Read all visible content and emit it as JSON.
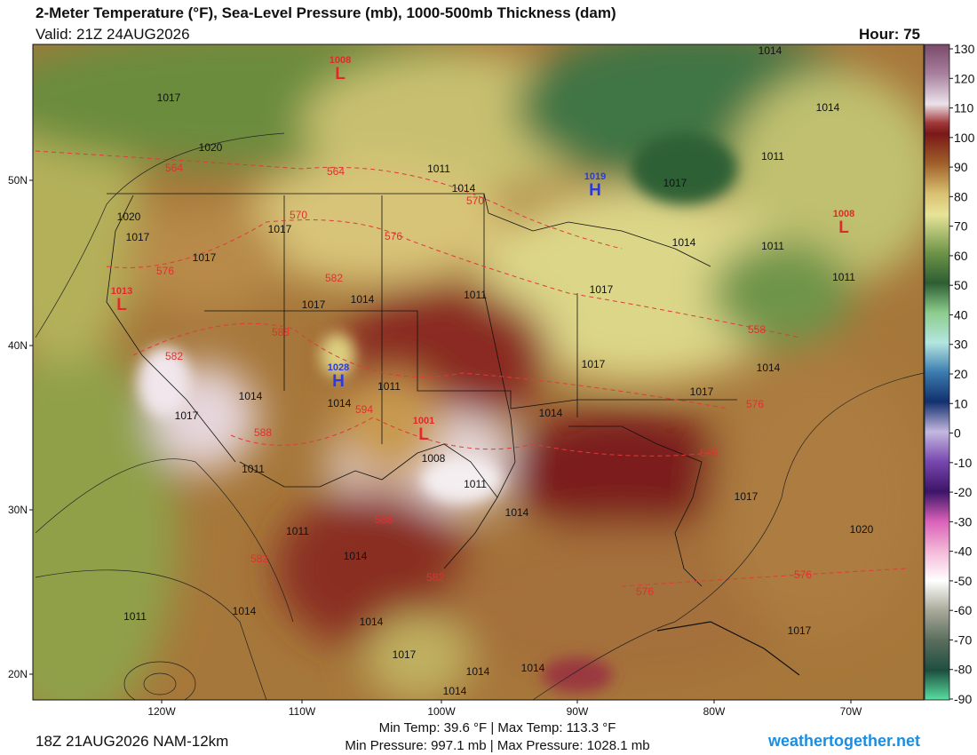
{
  "header": {
    "title": "2-Meter Temperature (°F), Sea-Level Pressure (mb), 1000-500mb Thickness (dam)",
    "valid": "Valid: 21Z 24AUG2026",
    "hour": "Hour: 75"
  },
  "colorbar": {
    "ticks": [
      130,
      120,
      110,
      100,
      90,
      80,
      70,
      60,
      50,
      40,
      30,
      20,
      10,
      0,
      -10,
      -20,
      -30,
      -40,
      -50,
      -60,
      -70,
      -80,
      -90
    ]
  },
  "map": {
    "latitude_labels": [
      "50N",
      "40N",
      "30N",
      "20N"
    ],
    "longitude_labels": [
      "120W",
      "110W",
      "100W",
      "90W",
      "80W",
      "70W"
    ],
    "isobar_labels": [
      "1017",
      "1020",
      "1011",
      "1014",
      "1020",
      "1017",
      "1017",
      "1017",
      "1014",
      "1017",
      "1011",
      "1017",
      "1017",
      "1014",
      "1011",
      "1011",
      "1014",
      "1014",
      "1014",
      "1017",
      "1017",
      "1014",
      "1011",
      "1014",
      "1014",
      "1017",
      "1011",
      "1008",
      "1011",
      "1014",
      "1011",
      "1014",
      "1014",
      "1017",
      "1014",
      "1014",
      "1014",
      "1014",
      "1011",
      "1017",
      "1020",
      "1017",
      "1011"
    ],
    "thickness_labels": [
      "564",
      "564",
      "570",
      "570",
      "576",
      "576",
      "582",
      "588",
      "582",
      "588",
      "594",
      "576",
      "576",
      "558",
      "576",
      "576",
      "582",
      "582",
      "588"
    ],
    "highs": [
      {
        "symbol": "H",
        "pressure": "1028"
      },
      {
        "symbol": "H",
        "pressure": "1019"
      }
    ],
    "lows": [
      {
        "symbol": "L",
        "pressure": "1008"
      },
      {
        "symbol": "L",
        "pressure": "1013"
      },
      {
        "symbol": "L",
        "pressure": "1001"
      },
      {
        "symbol": "L",
        "pressure": "1008"
      }
    ]
  },
  "footer": {
    "stats_temp": "Min Temp:  39.6 °F | Max Temp: 113.3 °F",
    "stats_pressure": "Min Pressure: 997.1 mb | Max Pressure: 1028.1 mb",
    "run": "18Z 21AUG2026 NAM-12km",
    "site": "weathertogether.net"
  }
}
